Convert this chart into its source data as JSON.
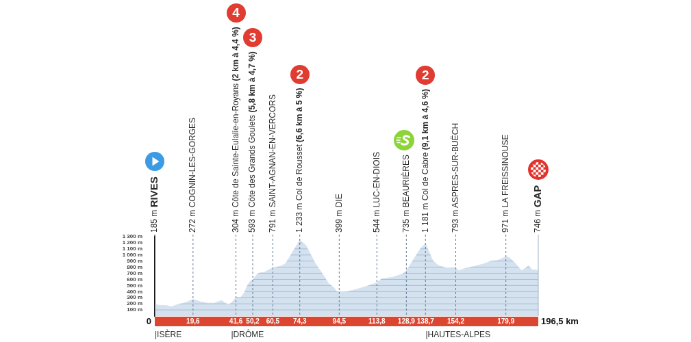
{
  "chart_data": {
    "type": "area",
    "color": "#d4e2ef",
    "x": [
      0,
      3,
      6.1,
      8.4,
      11.9,
      15.4,
      19.6,
      23.6,
      27.1,
      30.6,
      34.2,
      35.9,
      37.7,
      39.4,
      41.6,
      44,
      45.9,
      47.6,
      49,
      50.2,
      52.9,
      56.4,
      60.5,
      64.6,
      66.9,
      69.2,
      71.6,
      74.3,
      77.4,
      79.8,
      82.1,
      85.6,
      89.1,
      91.5,
      93.2,
      94.5,
      96,
      98.5,
      103.2,
      107.8,
      113.8,
      116,
      121.9,
      126.6,
      128.9,
      131.2,
      134.2,
      136.5,
      138.7,
      140.6,
      142.4,
      145.3,
      149.9,
      154.2,
      155.8,
      159.3,
      164,
      168.7,
      172.2,
      175.7,
      179.9,
      181.5,
      183.9,
      188,
      191.5,
      193.2,
      196.5
    ],
    "values": [
      185,
      175,
      170,
      150,
      190,
      215,
      272,
      230,
      210,
      210,
      255,
      215,
      190,
      215,
      304,
      305,
      380,
      510,
      570,
      593,
      700,
      720,
      791,
      815,
      855,
      970,
      1100,
      1233,
      1160,
      1010,
      870,
      705,
      530,
      475,
      400,
      399,
      395,
      398,
      435,
      480,
      544,
      605,
      635,
      685,
      735,
      855,
      1005,
      1120,
      1181,
      1045,
      910,
      825,
      785,
      793,
      740,
      785,
      815,
      855,
      900,
      910,
      971,
      960,
      890,
      740,
      825,
      760,
      746
    ],
    "xlim": [
      0,
      196.5
    ],
    "xticks": [
      {
        "value": 19.6,
        "label": "19,6"
      },
      {
        "value": 41.6,
        "label": "41,6"
      },
      {
        "value": 50.2,
        "label": "50,2"
      },
      {
        "value": 60.5,
        "label": "60,5"
      },
      {
        "value": 74.3,
        "label": "74,3"
      },
      {
        "value": 94.5,
        "label": "94,5"
      },
      {
        "value": 113.8,
        "label": "113,8"
      },
      {
        "value": 128.9,
        "label": "128,9"
      },
      {
        "value": 138.7,
        "label": "138,7"
      },
      {
        "value": 154.2,
        "label": "154,2"
      },
      {
        "value": 179.9,
        "label": "179,9"
      }
    ],
    "ylim": [
      0,
      1300
    ],
    "yticks": [
      {
        "value": 100,
        "label": "100 m"
      },
      {
        "value": 200,
        "label": "200 m"
      },
      {
        "value": 300,
        "label": "300 m"
      },
      {
        "value": 400,
        "label": "400 m"
      },
      {
        "value": 500,
        "label": "500 m"
      },
      {
        "value": 600,
        "label": "600 m"
      },
      {
        "value": 700,
        "label": "700 m"
      },
      {
        "value": 800,
        "label": "800 m"
      },
      {
        "value": 900,
        "label": "900 m"
      },
      {
        "value": 1000,
        "label": "1 000 m"
      },
      {
        "value": 1100,
        "label": "1 100 m"
      },
      {
        "value": 1200,
        "label": "1 200 m"
      },
      {
        "value": 1300,
        "label": "1 300 m"
      }
    ],
    "grid": "y",
    "ref_lines": [
      {
        "axis": "x",
        "value": 0,
        "label": "185 m RIVES",
        "line_style": "solid",
        "color": "#1a1a1a"
      },
      {
        "axis": "x",
        "value": 19.6,
        "label": "272 m COGNIN-LES-GORGES",
        "line_style": "dashed",
        "color": "#5f7692"
      },
      {
        "axis": "x",
        "value": 41.6,
        "label": "304 m Côte de Sainte-Eulalie-en-Royans (2 km à 4,4 %)",
        "line_style": "dashed",
        "color": "#5f7692"
      },
      {
        "axis": "x",
        "value": 50.2,
        "label": "593 m Côte des Grands Goulets (5,8 km à 4,7 %)",
        "line_style": "dashed",
        "color": "#5f7692"
      },
      {
        "axis": "x",
        "value": 60.5,
        "label": "791 m SAINT-AGNAN-EN-VERCORS",
        "line_style": "dashed",
        "color": "#5f7692"
      },
      {
        "axis": "x",
        "value": 74.3,
        "label": "1 233 m Col de Rousset (6,6 km à 5 %)",
        "line_style": "dashed",
        "color": "#5f7692"
      },
      {
        "axis": "x",
        "value": 94.5,
        "label": "399 m DIE",
        "line_style": "dashed",
        "color": "#5f7692"
      },
      {
        "axis": "x",
        "value": 113.8,
        "label": "544 m LUC-EN-DIOIS",
        "line_style": "dashed",
        "color": "#5f7692"
      },
      {
        "axis": "x",
        "value": 128.9,
        "label": "735 m BEAURIÈRES",
        "line_style": "dashed",
        "color": "#5f7692"
      },
      {
        "axis": "x",
        "value": 138.7,
        "label": "1 181 m Col de Cabre (9,1 km à 4,6 %)",
        "line_style": "dashed",
        "color": "#5f7692"
      },
      {
        "axis": "x",
        "value": 154.2,
        "label": "793 m ASPRES-SUR-BUËCH",
        "line_style": "dashed",
        "color": "#5f7692"
      },
      {
        "axis": "x",
        "value": 179.9,
        "label": "971 m LA FREISSINOUSE",
        "line_style": "dashed",
        "color": "#5f7692"
      },
      {
        "axis": "x",
        "value": 196.5,
        "label": "746 m GAP",
        "line_style": "solid",
        "color": "#9fb2c7"
      }
    ],
    "annotations": [
      "4",
      "3",
      "2",
      "2",
      "0",
      "196,5 km",
      "|ISÈRE",
      "|DRÔME",
      "|HAUTES-ALPES"
    ]
  }
}
